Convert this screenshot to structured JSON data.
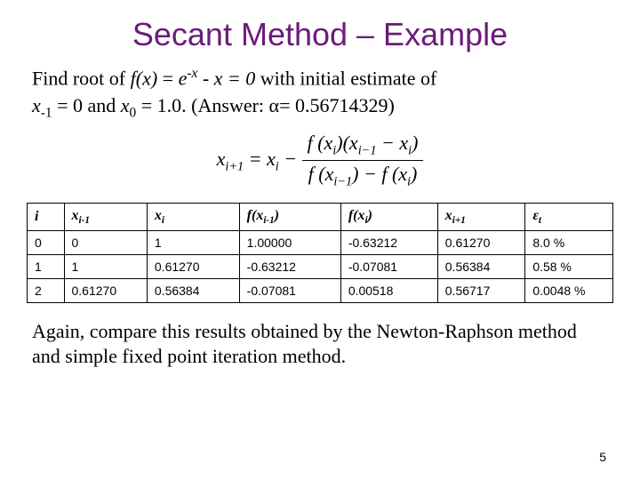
{
  "title": "Secant Method – Example",
  "problem": {
    "line1_pre": "Find root of ",
    "func_lhs": "f(x)",
    "func_eq": " = ",
    "func_rhs": "e",
    "func_exp": "-x",
    "func_tail": " - x = 0",
    "line1_post": " with initial estimate of",
    "x_neg1": "x",
    "x_neg1_sub": "-1",
    "x_neg1_val": " = 0",
    "and": " and ",
    "x0": "x",
    "x0_sub": "0",
    "x0_val": " = 1.0",
    "answer_pre": ". (Answer: ",
    "alpha": "α= 0.56714329",
    "answer_post": ")"
  },
  "formula": {
    "lhs": "x",
    "lhs_sub": "i+1",
    "eq": " = x",
    "eq_sub": "i",
    "minus": " − ",
    "num_a": "f (x",
    "num_a_sub": "i",
    "num_b": ")(x",
    "num_b_sub": "i−1",
    "num_c": " − x",
    "num_c_sub": "i",
    "num_d": ")",
    "den_a": "f (x",
    "den_a_sub": "i−1",
    "den_b": ") − f (x",
    "den_b_sub": "i",
    "den_c": ")"
  },
  "table": {
    "headers": {
      "c0": "i",
      "c1_pre": "x",
      "c1_sub": "i-1",
      "c2_pre": "x",
      "c2_sub": "i",
      "c3_pre": "f(x",
      "c3_sub": "i-1",
      "c3_post": ")",
      "c4_pre": "f(x",
      "c4_sub": "i",
      "c4_post": ")",
      "c5_pre": "x",
      "c5_sub": "i+1",
      "c6_pre": "ε",
      "c6_sub": "t"
    },
    "rows": [
      [
        "0",
        "0",
        "1",
        "1.00000",
        "-0.63212",
        "0.61270",
        "8.0 %"
      ],
      [
        "1",
        "1",
        "0.61270",
        "-0.63212",
        "-0.07081",
        "0.56384",
        "0.58 %"
      ],
      [
        "2",
        "0.61270",
        "0.56384",
        "-0.07081",
        "0.00518",
        "0.56717",
        "0.0048 %"
      ]
    ]
  },
  "closing": "Again, compare this results obtained by the Newton-Raphson method and simple fixed point iteration method.",
  "pagenum": "5",
  "style": {
    "title_color": "#6a1b7a",
    "bg": "#ffffff",
    "border": "#000000"
  }
}
